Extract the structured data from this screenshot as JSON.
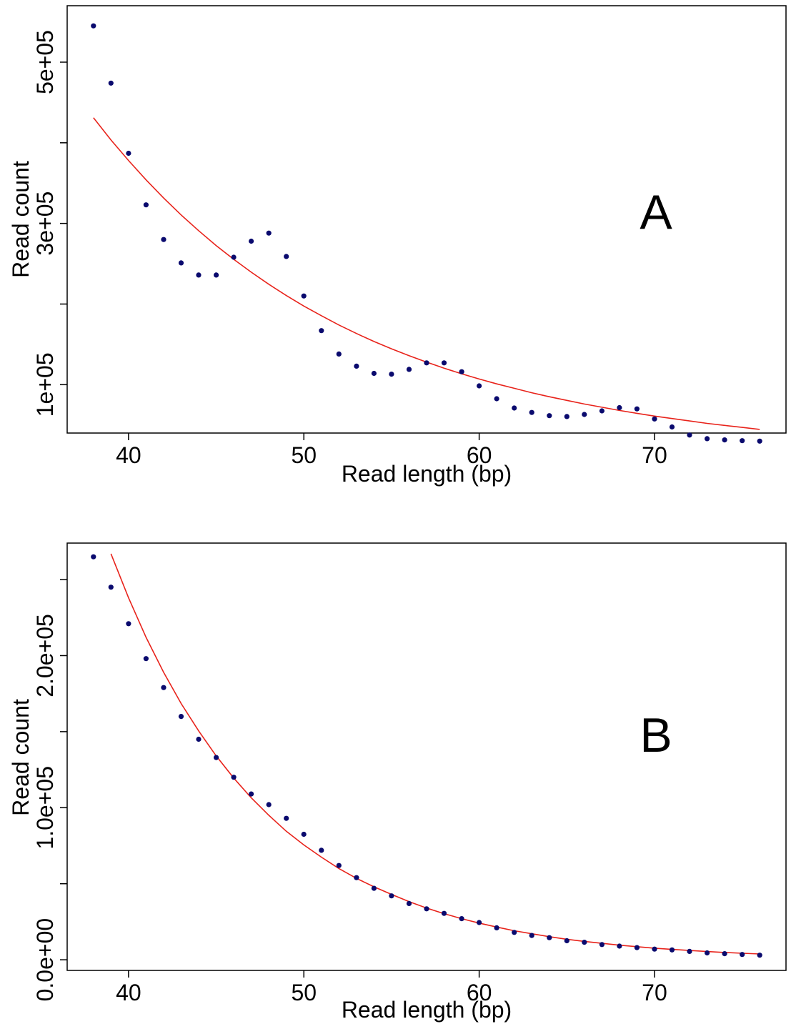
{
  "chart_data": [
    {
      "type": "scatter",
      "panel_label": "A",
      "xlabel": "Read length (bp)",
      "ylabel": "Read count",
      "xlim": [
        36.5,
        77.5
      ],
      "ylim": [
        40000,
        570000
      ],
      "x_ticks": [
        40,
        50,
        60,
        70
      ],
      "x_tick_labels": [
        "40",
        "50",
        "60",
        "70"
      ],
      "y_ticks": [
        100000,
        200000,
        300000,
        400000,
        500000
      ],
      "y_tick_labels": [
        "1e+05",
        "",
        "3e+05",
        "",
        "5e+05"
      ],
      "grid": false,
      "point_color": "#0a0a6e",
      "points": {
        "x": [
          38,
          39,
          40,
          41,
          42,
          43,
          44,
          45,
          46,
          47,
          48,
          49,
          50,
          51,
          52,
          53,
          54,
          55,
          56,
          57,
          58,
          59,
          60,
          61,
          62,
          63,
          64,
          65,
          66,
          67,
          68,
          69,
          70,
          71,
          72,
          73,
          74,
          75,
          76
        ],
        "y": [
          545000,
          474000,
          387000,
          323000,
          280000,
          251000,
          236000,
          236000,
          258000,
          278000,
          288000,
          259000,
          210000,
          167000,
          138000,
          123000,
          114000,
          113000,
          119000,
          127000,
          127000,
          116000,
          98500,
          82500,
          71000,
          65500,
          61500,
          60500,
          63000,
          67500,
          71500,
          70000,
          57500,
          47500,
          37500,
          33000,
          31500,
          30500,
          30000
        ]
      },
      "fit": {
        "color": "#e8231b",
        "x": [
          38,
          39,
          40,
          41,
          42,
          43,
          44,
          45,
          46,
          47,
          48,
          49,
          50,
          51,
          52,
          53,
          54,
          55,
          56,
          57,
          58,
          59,
          60,
          61,
          62,
          63,
          64,
          65,
          66,
          67,
          68,
          69,
          70,
          71,
          72,
          73,
          74,
          75,
          76
        ],
        "y": [
          431000,
          403500,
          378000,
          354000,
          331500,
          310500,
          291000,
          272500,
          255500,
          239500,
          224500,
          210500,
          197500,
          185500,
          174000,
          163500,
          153500,
          144500,
          136000,
          128000,
          120500,
          113500,
          107000,
          101000,
          95500,
          90000,
          85000,
          80500,
          76000,
          72000,
          68000,
          64500,
          61000,
          58000,
          55000,
          52000,
          49500,
          47000,
          44500
        ]
      }
    },
    {
      "type": "scatter",
      "panel_label": "B",
      "xlabel": "Read length (bp)",
      "ylabel": "Read count",
      "xlim": [
        36.5,
        77.5
      ],
      "ylim": [
        -7000,
        274000
      ],
      "x_ticks": [
        40,
        50,
        60,
        70
      ],
      "x_tick_labels": [
        "40",
        "50",
        "60",
        "70"
      ],
      "y_ticks": [
        0,
        50000,
        100000,
        150000,
        200000,
        250000
      ],
      "y_tick_labels": [
        "0.0e+00",
        "",
        "1.0e+05",
        "",
        "2.0e+05",
        ""
      ],
      "grid": false,
      "point_color": "#0a0a6e",
      "points": {
        "x": [
          38,
          39,
          40,
          41,
          42,
          43,
          44,
          45,
          46,
          47,
          48,
          49,
          50,
          51,
          52,
          53,
          54,
          55,
          56,
          57,
          58,
          59,
          60,
          61,
          62,
          63,
          64,
          65,
          66,
          67,
          68,
          69,
          70,
          71,
          72,
          73,
          74,
          75,
          76
        ],
        "y": [
          265000,
          245000,
          221000,
          198000,
          179000,
          160000,
          145000,
          133000,
          120000,
          109000,
          102000,
          93000,
          82500,
          72000,
          62000,
          54000,
          47000,
          42000,
          37000,
          33500,
          30500,
          27000,
          24500,
          21000,
          18000,
          16000,
          14500,
          12500,
          11500,
          10000,
          9000,
          8000,
          7000,
          6500,
          5500,
          4500,
          4000,
          3500,
          3000
        ]
      },
      "fit": {
        "color": "#e8231b",
        "x": [
          39,
          40,
          41,
          42,
          43,
          44,
          45,
          46,
          47,
          48,
          49,
          50,
          51,
          52,
          53,
          54,
          55,
          56,
          57,
          58,
          59,
          60,
          61,
          62,
          63,
          64,
          65,
          66,
          67,
          68,
          69,
          70,
          71,
          72,
          73,
          74,
          75,
          76
        ],
        "y": [
          267000,
          238000,
          212000,
          189000,
          168500,
          150500,
          134000,
          119500,
          106500,
          95000,
          84500,
          75500,
          67500,
          60000,
          53500,
          48000,
          43000,
          38200,
          34000,
          30300,
          27000,
          24100,
          21500,
          19100,
          17100,
          15200,
          13500,
          12100,
          10800,
          9600,
          8600,
          7600,
          6800,
          6100,
          5400,
          4800,
          4300,
          3800
        ]
      }
    }
  ]
}
